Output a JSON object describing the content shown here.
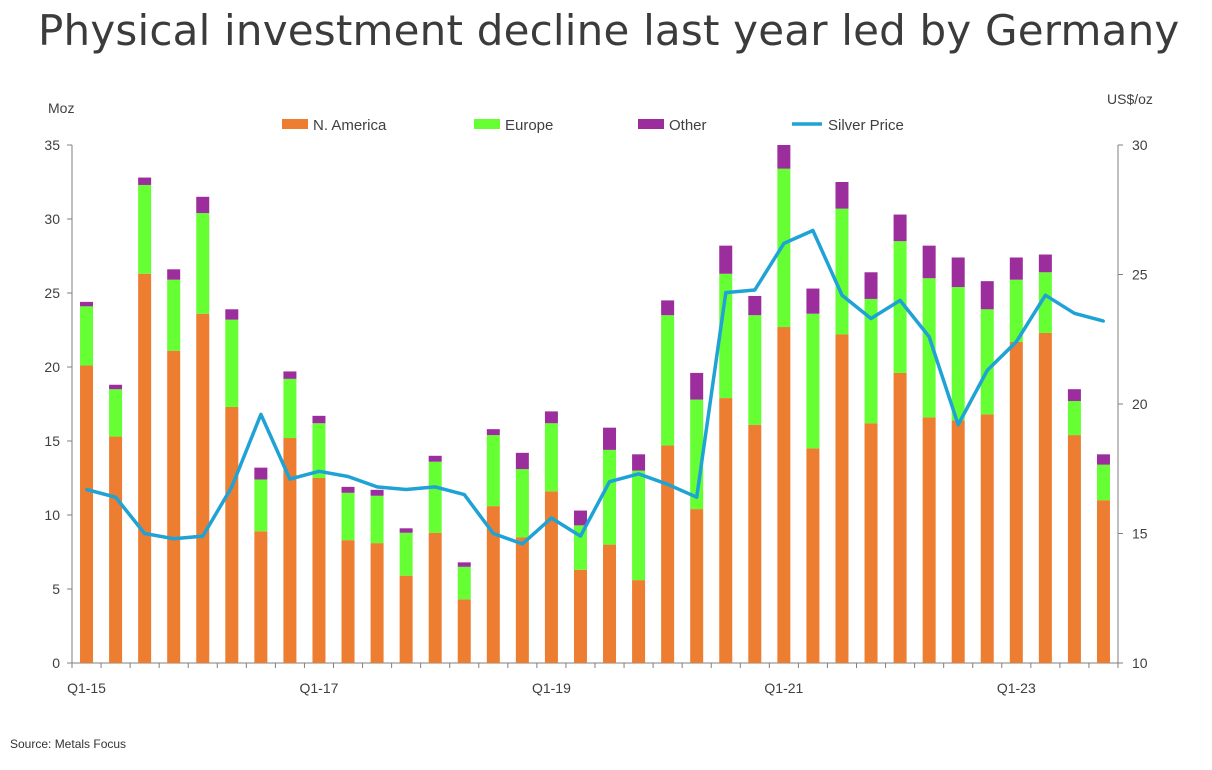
{
  "title": "Physical investment decline last year led by Germany",
  "source": "Source: Metals Focus",
  "chart_data": {
    "type": "bar",
    "stacked": true,
    "title": "Physical investment decline last year led by Germany",
    "y_left_label": "Moz",
    "y_right_label": "US$/oz",
    "ylim_left": [
      0,
      35
    ],
    "ylim_right": [
      10,
      30
    ],
    "y_left_ticks": [
      "0",
      "5",
      "10",
      "15",
      "20",
      "25",
      "30",
      "35"
    ],
    "y_right_ticks": [
      "10",
      "15",
      "20",
      "25",
      "30"
    ],
    "x_tick_labels": [
      {
        "index": 0,
        "label": "Q1-15"
      },
      {
        "index": 8,
        "label": "Q1-17"
      },
      {
        "index": 16,
        "label": "Q1-19"
      },
      {
        "index": 24,
        "label": "Q1-21"
      },
      {
        "index": 32,
        "label": "Q1-23"
      }
    ],
    "legend_position": "top",
    "grid": false,
    "categories": [
      "Q1-15",
      "Q2-15",
      "Q3-15",
      "Q4-15",
      "Q1-16",
      "Q2-16",
      "Q3-16",
      "Q4-16",
      "Q1-17",
      "Q2-17",
      "Q3-17",
      "Q4-17",
      "Q1-18",
      "Q2-18",
      "Q3-18",
      "Q4-18",
      "Q1-19",
      "Q2-19",
      "Q3-19",
      "Q4-19",
      "Q1-20",
      "Q2-20",
      "Q3-20",
      "Q4-20",
      "Q1-21",
      "Q2-21",
      "Q3-21",
      "Q4-21",
      "Q1-22",
      "Q2-22",
      "Q3-22",
      "Q4-22",
      "Q1-23",
      "Q2-23",
      "Q3-23",
      "Q4-23"
    ],
    "series": [
      {
        "name": "N. America",
        "kind": "bar",
        "axis": "left",
        "color": "#ed7d31",
        "values": [
          20.1,
          15.3,
          26.3,
          21.1,
          23.6,
          17.3,
          8.9,
          15.2,
          12.5,
          8.3,
          8.1,
          5.9,
          8.8,
          4.3,
          10.6,
          8.5,
          11.6,
          6.3,
          8.0,
          5.6,
          14.7,
          10.4,
          17.9,
          16.1,
          22.7,
          14.5,
          22.2,
          16.2,
          19.6,
          16.6,
          16.4,
          16.8,
          21.7,
          22.3,
          15.4,
          11.0
        ]
      },
      {
        "name": "Europe",
        "kind": "bar",
        "axis": "left",
        "color": "#66ff33",
        "values": [
          4.0,
          3.2,
          6.0,
          4.8,
          6.8,
          5.9,
          3.5,
          4.0,
          3.7,
          3.2,
          3.2,
          2.9,
          4.8,
          2.2,
          4.8,
          4.6,
          4.6,
          3.0,
          6.4,
          7.4,
          8.8,
          7.4,
          8.4,
          7.4,
          10.7,
          9.1,
          8.5,
          8.4,
          8.9,
          9.4,
          9.0,
          7.1,
          4.2,
          4.1,
          2.3,
          2.4
        ]
      },
      {
        "name": "Other",
        "kind": "bar",
        "axis": "left",
        "color": "#9b2d9c",
        "values": [
          0.3,
          0.3,
          0.5,
          0.7,
          1.1,
          0.7,
          0.8,
          0.5,
          0.5,
          0.4,
          0.4,
          0.3,
          0.4,
          0.3,
          0.4,
          1.1,
          0.8,
          1.0,
          1.5,
          1.1,
          1.0,
          1.8,
          1.9,
          1.3,
          1.6,
          1.7,
          1.8,
          1.8,
          1.8,
          2.2,
          2.0,
          1.9,
          1.5,
          1.2,
          0.8,
          0.7
        ]
      },
      {
        "name": "Silver Price",
        "kind": "line",
        "axis": "right",
        "color": "#1fa2d5",
        "values": [
          16.7,
          16.4,
          15.0,
          14.8,
          14.9,
          16.8,
          19.6,
          17.1,
          17.4,
          17.2,
          16.8,
          16.7,
          16.8,
          16.5,
          15.0,
          14.6,
          15.6,
          14.9,
          17.0,
          17.3,
          16.9,
          16.4,
          24.3,
          24.4,
          26.2,
          26.7,
          24.2,
          23.3,
          24.0,
          22.6,
          19.2,
          21.3,
          22.4,
          24.2,
          23.5,
          23.2
        ]
      }
    ]
  }
}
